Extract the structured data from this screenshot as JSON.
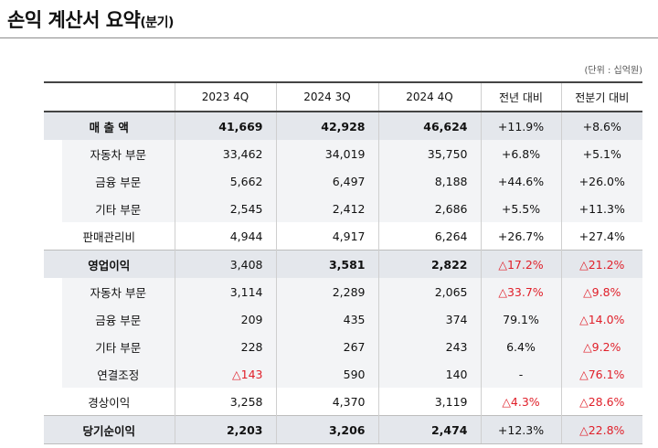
{
  "title": "손익 계산서 요약",
  "title_suffix": "(분기)",
  "unit": "(단위 : 십억원)",
  "columns": [
    "2023 4Q",
    "2024 3Q",
    "2024 4Q",
    "전년 대비",
    "전분기 대비"
  ],
  "rows": [
    {
      "label": "매 출 액",
      "v": [
        "41,669",
        "42,928",
        "46,624"
      ],
      "c": [
        "+11.9%",
        "+8.6%"
      ]
    },
    {
      "label": "자동차 부문",
      "v": [
        "33,462",
        "34,019",
        "35,750"
      ],
      "c": [
        "+6.8%",
        "+5.1%"
      ]
    },
    {
      "label": "금융 부문",
      "v": [
        "5,662",
        "6,497",
        "8,188"
      ],
      "c": [
        "+44.6%",
        "+26.0%"
      ]
    },
    {
      "label": "기타 부문",
      "v": [
        "2,545",
        "2,412",
        "2,686"
      ],
      "c": [
        "+5.5%",
        "+11.3%"
      ]
    },
    {
      "label": "판매관리비",
      "v": [
        "4,944",
        "4,917",
        "6,264"
      ],
      "c": [
        "+26.7%",
        "+27.4%"
      ]
    },
    {
      "label": "영업이익",
      "v": [
        "3,408",
        "3,581",
        "2,822"
      ],
      "c": [
        "△17.2%",
        "△21.2%"
      ]
    },
    {
      "label": "자동차 부문",
      "v": [
        "3,114",
        "2,289",
        "2,065"
      ],
      "c": [
        "△33.7%",
        "△9.8%"
      ]
    },
    {
      "label": "금융 부문",
      "v": [
        "209",
        "435",
        "374"
      ],
      "c": [
        "79.1%",
        "△14.0%"
      ]
    },
    {
      "label": "기타 부문",
      "v": [
        "228",
        "267",
        "243"
      ],
      "c": [
        "6.4%",
        "△9.2%"
      ]
    },
    {
      "label": "연결조정",
      "v": [
        "△143",
        "590",
        "140"
      ],
      "c": [
        "-",
        "△76.1%"
      ]
    },
    {
      "label": "경상이익",
      "v": [
        "3,258",
        "4,370",
        "3,119"
      ],
      "c": [
        "△4.3%",
        "△28.6%"
      ]
    },
    {
      "label": "당기순이익",
      "v": [
        "2,203",
        "3,206",
        "2,474"
      ],
      "c": [
        "+12.3%",
        "△22.8%"
      ]
    }
  ],
  "colors": {
    "negative": "#e0202a",
    "header_fill": "#e4e7ec",
    "sub_fill": "#f3f4f6"
  }
}
